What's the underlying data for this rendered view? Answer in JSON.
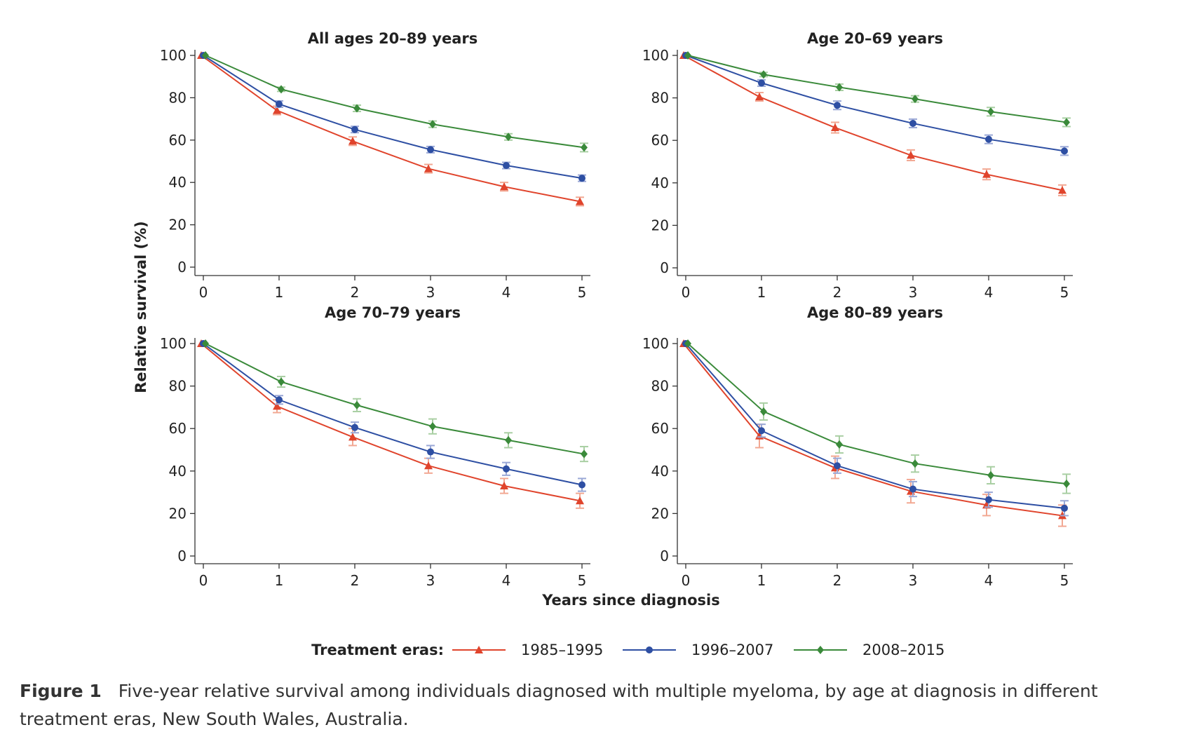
{
  "chart_data": [
    {
      "type": "line",
      "title": "All ages 20–89 years",
      "x": [
        0,
        1,
        2,
        3,
        4,
        5
      ],
      "xlim": [
        0,
        5
      ],
      "ylim": [
        0,
        100
      ],
      "yticks": [
        0,
        20,
        40,
        60,
        80,
        100
      ],
      "grid": false,
      "series": [
        {
          "name": "1985–1995",
          "values": [
            100,
            74,
            59.5,
            46.5,
            38,
            31
          ],
          "ci": [
            [
              100,
              100
            ],
            [
              72,
              76
            ],
            [
              57.5,
              61.5
            ],
            [
              44.5,
              48.5
            ],
            [
              36,
              40
            ],
            [
              29,
              33
            ]
          ]
        },
        {
          "name": "1996–2007",
          "values": [
            100,
            77,
            65,
            55.5,
            48,
            42
          ],
          "ci": [
            [
              100,
              100
            ],
            [
              75.5,
              78.5
            ],
            [
              63.5,
              66.5
            ],
            [
              54,
              57
            ],
            [
              46.5,
              49.5
            ],
            [
              40.5,
              43.5
            ]
          ]
        },
        {
          "name": "2008–2015",
          "values": [
            100,
            84,
            75,
            67.5,
            61.5,
            56.5
          ],
          "ci": [
            [
              100,
              100
            ],
            [
              83,
              85
            ],
            [
              73.5,
              76.5
            ],
            [
              66,
              69
            ],
            [
              60,
              63
            ],
            [
              54.5,
              58.5
            ]
          ]
        }
      ]
    },
    {
      "type": "line",
      "title": "Age 20–69 years",
      "x": [
        0,
        1,
        2,
        3,
        4,
        5
      ],
      "xlim": [
        0,
        5
      ],
      "ylim": [
        0,
        100
      ],
      "yticks": [
        0,
        20,
        40,
        60,
        80,
        100
      ],
      "grid": false,
      "series": [
        {
          "name": "1985–1995",
          "values": [
            100,
            80.5,
            66,
            53,
            44,
            36.5
          ],
          "ci": [
            [
              100,
              100
            ],
            [
              78.5,
              82.5
            ],
            [
              63.5,
              68.5
            ],
            [
              50.5,
              55.5
            ],
            [
              41.5,
              46.5
            ],
            [
              34,
              39
            ]
          ]
        },
        {
          "name": "1996–2007",
          "values": [
            100,
            87,
            76.5,
            68,
            60.5,
            55
          ],
          "ci": [
            [
              100,
              100
            ],
            [
              85.5,
              88.5
            ],
            [
              74.5,
              78.5
            ],
            [
              66,
              70
            ],
            [
              58.5,
              62.5
            ],
            [
              53,
              57
            ]
          ]
        },
        {
          "name": "2008–2015",
          "values": [
            100,
            91,
            85,
            79.5,
            73.5,
            68.5
          ],
          "ci": [
            [
              100,
              100
            ],
            [
              90,
              92
            ],
            [
              83.5,
              86.5
            ],
            [
              78,
              81
            ],
            [
              71.5,
              75.5
            ],
            [
              66.5,
              70.5
            ]
          ]
        }
      ]
    },
    {
      "type": "line",
      "title": "Age 70–79 years",
      "x": [
        0,
        1,
        2,
        3,
        4,
        5
      ],
      "xlim": [
        0,
        5
      ],
      "ylim": [
        0,
        100
      ],
      "yticks": [
        0,
        20,
        40,
        60,
        80,
        100
      ],
      "grid": false,
      "series": [
        {
          "name": "1985–1995",
          "values": [
            100,
            70.5,
            56,
            42.5,
            33,
            26
          ],
          "ci": [
            [
              100,
              100
            ],
            [
              67.5,
              73.5
            ],
            [
              52,
              60
            ],
            [
              39,
              46
            ],
            [
              29.5,
              36.5
            ],
            [
              22.5,
              29.5
            ]
          ]
        },
        {
          "name": "1996–2007",
          "values": [
            100,
            73.5,
            60.5,
            49,
            41,
            33.5
          ],
          "ci": [
            [
              100,
              100
            ],
            [
              71.5,
              75.5
            ],
            [
              58,
              63
            ],
            [
              46,
              52
            ],
            [
              38,
              44
            ],
            [
              30.5,
              36.5
            ]
          ]
        },
        {
          "name": "2008–2015",
          "values": [
            100,
            82,
            71,
            61,
            54.5,
            48
          ],
          "ci": [
            [
              100,
              100
            ],
            [
              79.5,
              84.5
            ],
            [
              68,
              74
            ],
            [
              57.5,
              64.5
            ],
            [
              51,
              58
            ],
            [
              44.5,
              51.5
            ]
          ]
        }
      ]
    },
    {
      "type": "line",
      "title": "Age 80–89 years",
      "x": [
        0,
        1,
        2,
        3,
        4,
        5
      ],
      "xlim": [
        0,
        5
      ],
      "ylim": [
        0,
        100
      ],
      "yticks": [
        0,
        20,
        40,
        60,
        80,
        100
      ],
      "grid": false,
      "series": [
        {
          "name": "1985–1995",
          "values": [
            100,
            56.5,
            41.5,
            30.5,
            24,
            19
          ],
          "ci": [
            [
              100,
              100
            ],
            [
              51,
              62
            ],
            [
              36.5,
              47
            ],
            [
              25,
              36
            ],
            [
              19,
              29
            ],
            [
              14,
              24
            ]
          ]
        },
        {
          "name": "1996–2007",
          "values": [
            100,
            59,
            42.5,
            31.5,
            26.5,
            22.5
          ],
          "ci": [
            [
              100,
              100
            ],
            [
              56,
              62
            ],
            [
              39,
              46
            ],
            [
              28,
              35
            ],
            [
              23,
              30
            ],
            [
              19,
              26
            ]
          ]
        },
        {
          "name": "2008–2015",
          "values": [
            100,
            68,
            52.5,
            43.5,
            38,
            34
          ],
          "ci": [
            [
              100,
              100
            ],
            [
              64,
              72
            ],
            [
              48.5,
              56.5
            ],
            [
              39.5,
              47.5
            ],
            [
              34,
              42
            ],
            [
              29.5,
              38.5
            ]
          ]
        }
      ]
    }
  ],
  "axes": {
    "ylabel": "Relative survival (%)",
    "xlabel": "Years since diagnosis"
  },
  "legend": {
    "title": "Treatment eras:",
    "placement": "bottom-center",
    "items": [
      {
        "label": "1985–1995",
        "color": "#e0442c",
        "marker": "triangle"
      },
      {
        "label": "1996–2007",
        "color": "#2e4fa3",
        "marker": "circle"
      },
      {
        "label": "2008–2015",
        "color": "#3a8a3a",
        "marker": "diamond"
      }
    ]
  },
  "colors": {
    "series": [
      "#e0442c",
      "#2e4fa3",
      "#3a8a3a"
    ],
    "error_bars": [
      "#f2a893",
      "#9aa8d6",
      "#a9cfa3"
    ]
  },
  "caption": {
    "label": "Figure 1",
    "text": "Five-year relative survival among individuals diagnosed with multiple myeloma, by age at diagnosis in different treatment eras, New South Wales, Australia."
  }
}
